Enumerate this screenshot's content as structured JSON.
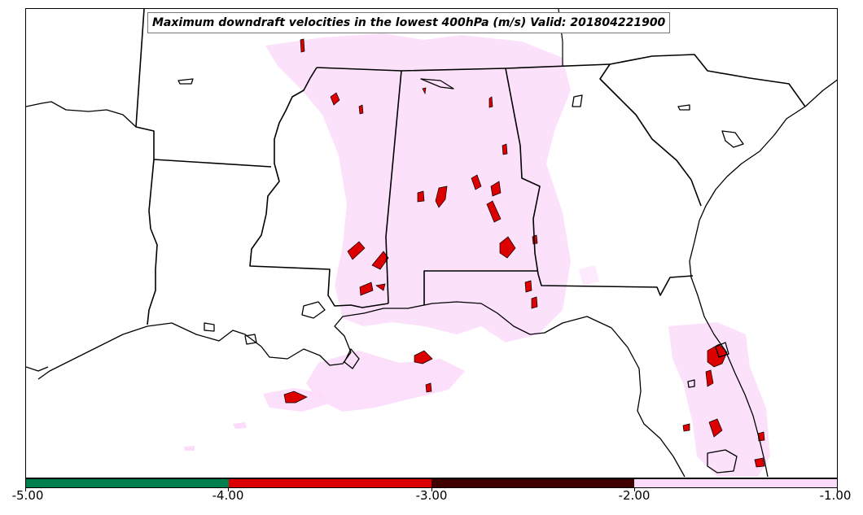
{
  "title": "Maximum downdraft velocities in the lowest 400hPa (m/s) Valid: 201804221900",
  "colorbar": {
    "ticks": [
      "-5.00",
      "-4.00",
      "-3.00",
      "-2.00",
      "-1.00"
    ],
    "bins": [
      {
        "min": -5.0,
        "max": -4.0,
        "color": "#007f4f"
      },
      {
        "min": -4.0,
        "max": -3.0,
        "color": "#dd0000"
      },
      {
        "min": -3.0,
        "max": -2.0,
        "color": "#400000"
      },
      {
        "min": -2.0,
        "max": -1.0,
        "color": "#fcdcfa"
      }
    ]
  },
  "map": {
    "region": "Southeastern United States and northern Gulf of Mexico",
    "colors": {
      "light": "#fcdcfa",
      "strong": "#dd0000",
      "outline": "#000000"
    }
  }
}
